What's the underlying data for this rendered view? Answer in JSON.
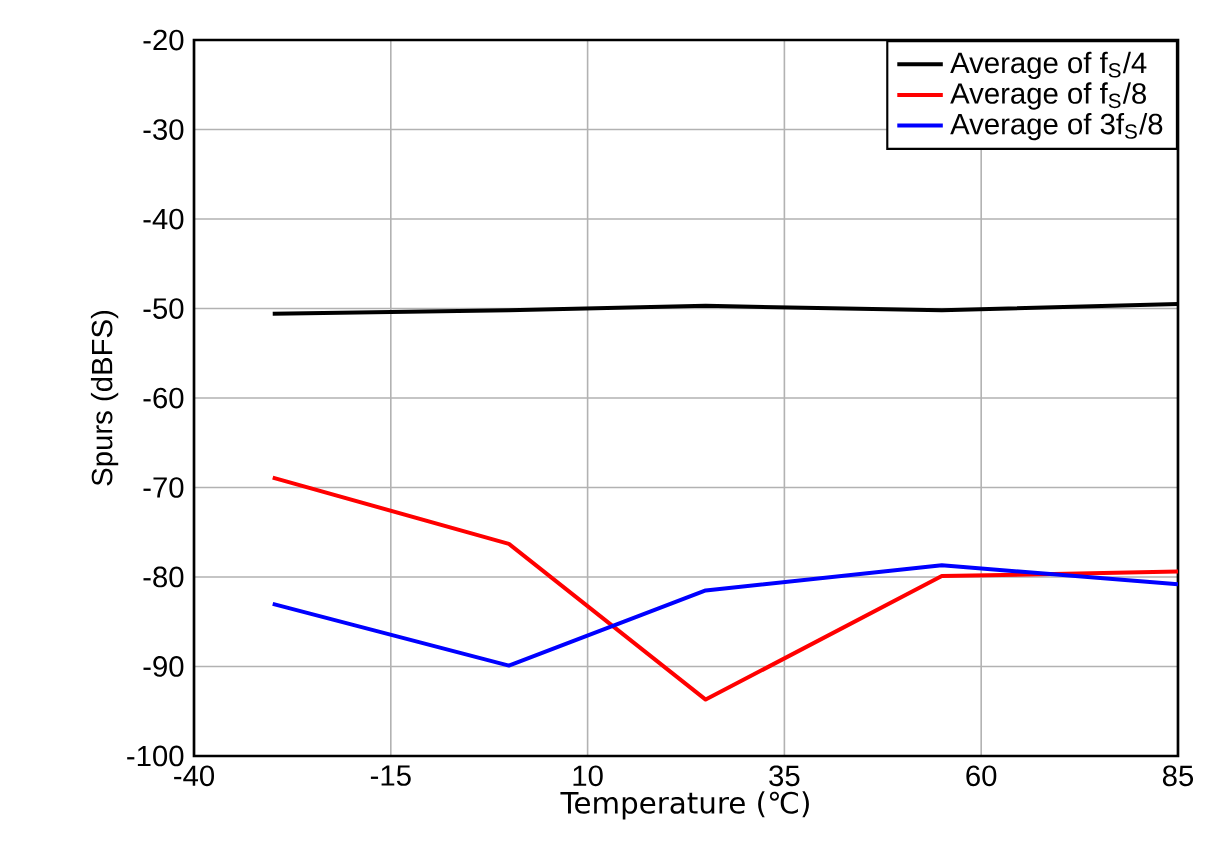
{
  "chart_data": {
    "type": "line",
    "xlabel": "Temperature (℃)",
    "ylabel": "Spurs (dBFS)",
    "x": [
      -30,
      0,
      25,
      55,
      85
    ],
    "series": [
      {
        "name": "Average of f$_{S}$/4",
        "color": "#000000",
        "values": [
          -50.6,
          -50.2,
          -49.7,
          -50.2,
          -49.5
        ]
      },
      {
        "name": "Average of f$_{S}$/8",
        "color": "#ff0000",
        "values": [
          -68.9,
          -76.3,
          -93.7,
          -79.9,
          -79.4
        ]
      },
      {
        "name": "Average of 3f$_{S}$/8",
        "color": "#0000ff",
        "values": [
          -83.0,
          -89.9,
          -81.5,
          -78.7,
          -80.8
        ]
      }
    ],
    "xlim": [
      -40,
      85
    ],
    "xticks": [
      -40,
      -15,
      10,
      35,
      60,
      85
    ],
    "ylim": [
      -100,
      -20
    ],
    "yticks": [
      -100,
      -90,
      -80,
      -70,
      -60,
      -50,
      -40,
      -30,
      -20
    ],
    "grid": true,
    "legend": "top right",
    "marker": "none",
    "line_style": "solid"
  }
}
